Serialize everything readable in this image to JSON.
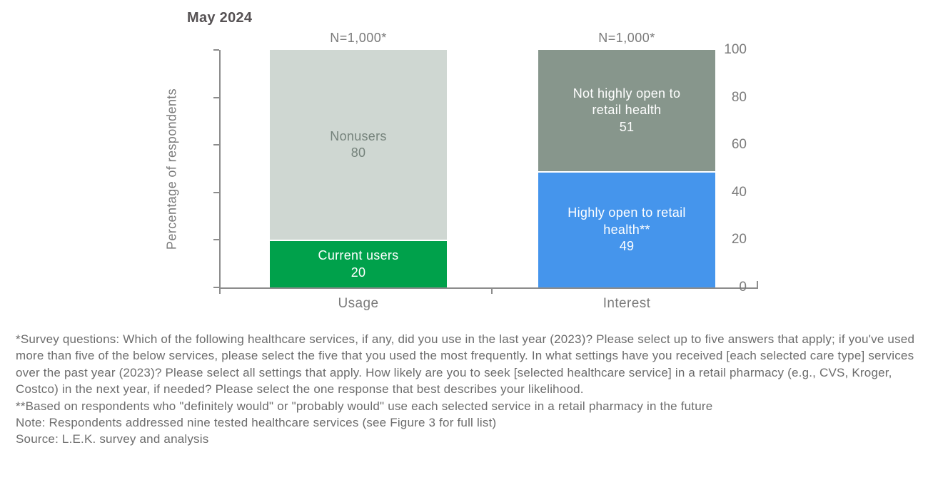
{
  "title": "May 2024",
  "colors": {
    "axis": "#8C8C8C",
    "chart_text": "#7B7B7B",
    "title_text": "#565254",
    "footnote_text": "#6C6C6C",
    "green": "#00A14B",
    "light_gray": "#CFD7D2",
    "slate_gray": "#87968C",
    "blue": "#4595EC"
  },
  "chart_data": {
    "type": "bar",
    "stacked": true,
    "title": "May 2024",
    "xlabel": "",
    "ylabel": "Percentage of respondents",
    "ylim": [
      0,
      100
    ],
    "yticks": [
      0,
      20,
      40,
      60,
      80,
      100
    ],
    "grid": false,
    "legend_position": "none (labels inside segments)",
    "categories": [
      "Usage",
      "Interest"
    ],
    "bars": [
      {
        "category": "Usage",
        "n_label": "N=1,000*",
        "segments": [
          {
            "label": "Current users",
            "value": 20,
            "color": "#00A14B",
            "text_color": "#FFFFFF"
          },
          {
            "label": "Nonusers",
            "value": 80,
            "color": "#CFD7D2",
            "text_color": "#75827B"
          }
        ]
      },
      {
        "category": "Interest",
        "n_label": "N=1,000*",
        "segments": [
          {
            "label": "Highly open to retail health**",
            "value": 49,
            "color": "#4595EC",
            "text_color": "#FFFFFF"
          },
          {
            "label": "Not highly open to retail health",
            "value": 51,
            "color": "#87968C",
            "text_color": "#FFFFFF"
          }
        ]
      }
    ]
  },
  "footnotes": [
    "*Survey questions: Which of the following healthcare services, if any, did you use in the last year (2023)? Please select up to five answers that apply; if you've used more than five of the below services, please select the five that you used the most frequently. In what settings have you received [each selected care type] services over the past year (2023)? Please select all settings that apply. How likely are you to seek [selected healthcare service] in a retail pharmacy (e.g., CVS, Kroger, Costco) in the next year, if needed? Please select the one response that best describes your likelihood.",
    "**Based on respondents who \"definitely would\" or \"probably would\" use each selected service in a retail pharmacy in the future",
    "Note: Respondents addressed nine tested healthcare services (see Figure 3 for full list)",
    "Source: L.E.K. survey and analysis"
  ]
}
